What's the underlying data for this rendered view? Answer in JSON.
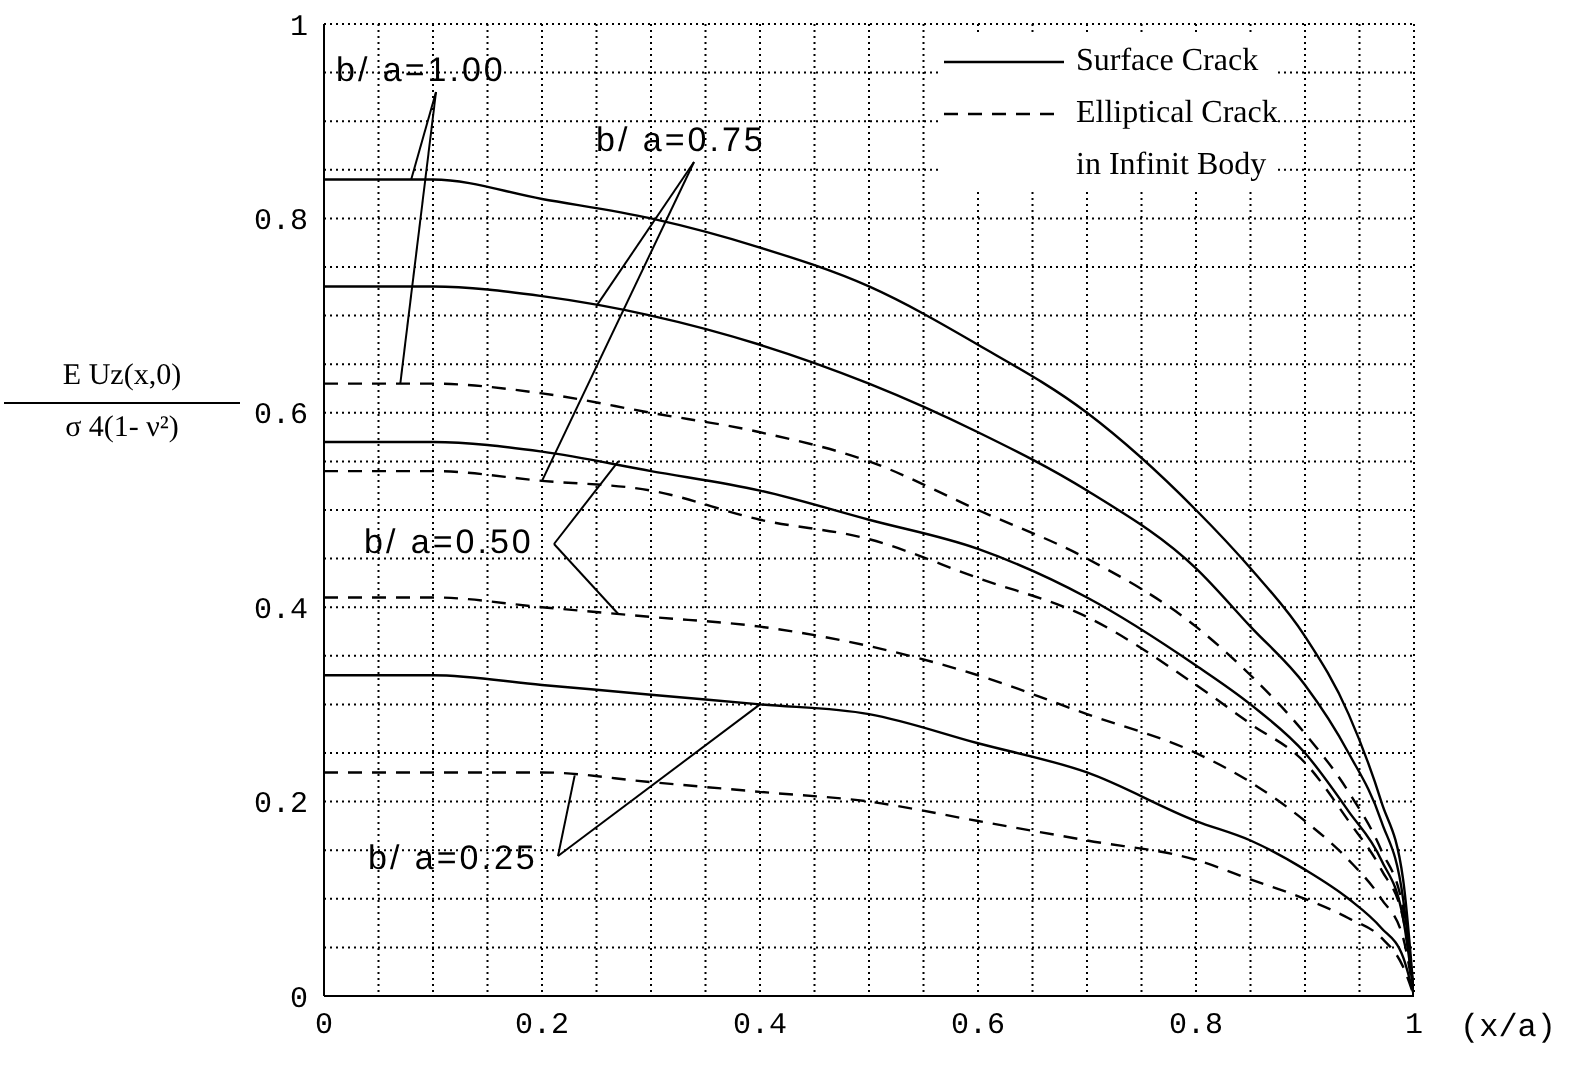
{
  "chart_data": {
    "type": "line",
    "ylabel": "E Uz(x,0)\nσ 4(1- ν²)",
    "xlabel": "(x/a)",
    "x": [
      0,
      0.1,
      0.2,
      0.3,
      0.4,
      0.5,
      0.6,
      0.7,
      0.8,
      0.85,
      0.9,
      0.94,
      0.97,
      0.99,
      1
    ],
    "series": [
      {
        "name": "Surface Crack",
        "color": "#000000",
        "line_style": "solid",
        "values": [
          0.84,
          0.84,
          0.82,
          0.8,
          0.77,
          0.73,
          0.67,
          0.6,
          0.5,
          0.44,
          0.37,
          0.29,
          0.2,
          0.12,
          0
        ]
      },
      {
        "color": "#000000",
        "line_style": "solid",
        "values": [
          0.73,
          0.73,
          0.72,
          0.7,
          0.67,
          0.63,
          0.58,
          0.52,
          0.44,
          0.38,
          0.32,
          0.25,
          0.18,
          0.1,
          0
        ]
      },
      {
        "color": "#000000",
        "line_style": "solid",
        "values": [
          0.57,
          0.57,
          0.56,
          0.54,
          0.52,
          0.49,
          0.46,
          0.41,
          0.34,
          0.3,
          0.25,
          0.19,
          0.14,
          0.08,
          0
        ]
      },
      {
        "color": "#000000",
        "line_style": "solid",
        "values": [
          0.33,
          0.33,
          0.32,
          0.31,
          0.3,
          0.29,
          0.26,
          0.23,
          0.18,
          0.16,
          0.13,
          0.1,
          0.07,
          0.04,
          0
        ]
      },
      {
        "name": "Elliptical Crack\nin Infinit Body",
        "color": "#000000",
        "line_style": "dashed",
        "values": [
          0.63,
          0.63,
          0.62,
          0.6,
          0.58,
          0.55,
          0.5,
          0.45,
          0.38,
          0.33,
          0.27,
          0.21,
          0.15,
          0.09,
          0
        ]
      },
      {
        "color": "#000000",
        "line_style": "dashed",
        "values": [
          0.54,
          0.54,
          0.53,
          0.52,
          0.49,
          0.47,
          0.43,
          0.39,
          0.32,
          0.28,
          0.24,
          0.18,
          0.13,
          0.08,
          0
        ]
      },
      {
        "color": "#000000",
        "line_style": "dashed",
        "values": [
          0.41,
          0.41,
          0.4,
          0.39,
          0.38,
          0.36,
          0.33,
          0.29,
          0.25,
          0.22,
          0.18,
          0.14,
          0.1,
          0.06,
          0
        ]
      },
      {
        "color": "#000000",
        "line_style": "dashed",
        "values": [
          0.23,
          0.23,
          0.23,
          0.22,
          0.21,
          0.2,
          0.18,
          0.16,
          0.14,
          0.12,
          0.1,
          0.08,
          0.06,
          0.03,
          0
        ]
      }
    ],
    "annotations": [
      {
        "text": "b/ a=1.00",
        "x": 0.08,
        "y": 0.84
      },
      {
        "text": "b/ a=0.75",
        "x": 0.25,
        "y": 0.71
      },
      {
        "text": "b/ a=0.50",
        "x": 0.27,
        "y": 0.55
      },
      {
        "text": "b/ a=0.25",
        "x": 0.4,
        "y": 0.3
      }
    ],
    "xlim": [
      0,
      1
    ],
    "ylim": [
      0,
      1
    ],
    "xticks": [
      0,
      {
        "value": 0.05,
        "label": null
      },
      {
        "value": 0.1,
        "label": null
      },
      {
        "value": 0.15,
        "label": null
      },
      0.2,
      {
        "value": 0.25,
        "label": null
      },
      {
        "value": 0.3,
        "label": null
      },
      {
        "value": 0.35,
        "label": null
      },
      0.4,
      {
        "value": 0.45,
        "label": null
      },
      {
        "value": 0.5,
        "label": null
      },
      {
        "value": 0.55,
        "label": null
      },
      0.6,
      {
        "value": 0.65,
        "label": null
      },
      {
        "value": 0.7,
        "label": null
      },
      {
        "value": 0.75,
        "label": null
      },
      0.8,
      {
        "value": 0.85,
        "label": null
      },
      {
        "value": 0.9,
        "label": null
      },
      {
        "value": 0.95,
        "label": null
      },
      1
    ],
    "yticks": [
      0,
      {
        "value": 0.05,
        "label": null
      },
      {
        "value": 0.1,
        "label": null
      },
      {
        "value": 0.15,
        "label": null
      },
      0.2,
      {
        "value": 0.25,
        "label": null
      },
      {
        "value": 0.3,
        "label": null
      },
      {
        "value": 0.35,
        "label": null
      },
      0.4,
      {
        "value": 0.45,
        "label": null
      },
      {
        "value": 0.5,
        "label": null
      },
      {
        "value": 0.55,
        "label": null
      },
      0.6,
      {
        "value": 0.65,
        "label": null
      },
      {
        "value": 0.7,
        "label": null
      },
      {
        "value": 0.75,
        "label": null
      },
      0.8,
      {
        "value": 0.85,
        "label": null
      },
      {
        "value": 0.9,
        "label": null
      },
      {
        "value": 0.95,
        "label": null
      },
      1
    ],
    "grid": true,
    "legend": "top right",
    "marker": "none"
  }
}
